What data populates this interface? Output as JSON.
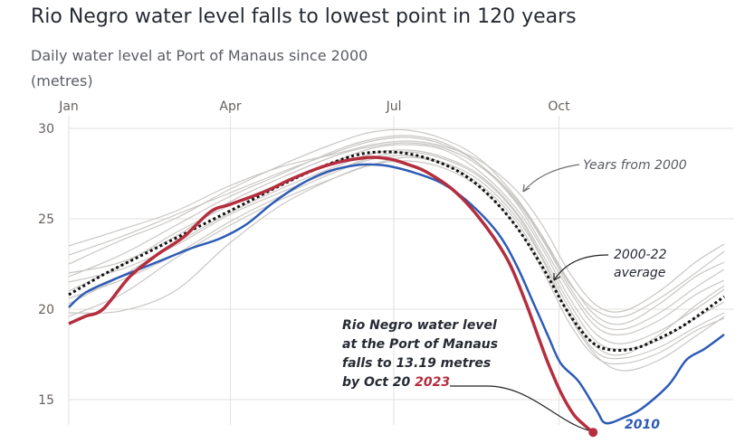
{
  "title": "Rio Negro water level falls to lowest point in 120 years",
  "subtitle": "Daily water level at Port of Manaus since 2000",
  "unit": "(metres)",
  "colors": {
    "y2023": "#b52e3e",
    "y2010": "#2d5bb5",
    "average": "#111111",
    "years": "#c9c7c4",
    "grid": "#e3e1de",
    "text": "#262a33",
    "muted": "#5a5d63"
  },
  "chart_data": {
    "type": "line",
    "title": "Rio Negro water level falls to lowest point in 120 years",
    "subtitle": "Daily water level at Port of Manaus since 2000",
    "ylabel": "(metres)",
    "xlabel": "",
    "x_ticks": [
      "Jan",
      "Apr",
      "Jul",
      "Oct"
    ],
    "x_tick_days": [
      1,
      91,
      182,
      274
    ],
    "y_ticks": [
      15,
      20,
      25,
      30
    ],
    "ylim": [
      13,
      30.5
    ],
    "xlim": [
      1,
      366
    ],
    "grid": true,
    "x_unit": "day of year",
    "series": [
      {
        "name": "2023",
        "style": "solid-thick-red",
        "x": [
          1,
          10,
          20,
          35,
          50,
          65,
          80,
          91,
          110,
          125,
          140,
          150,
          160,
          170,
          180,
          190,
          200,
          215,
          230,
          245,
          255,
          262,
          268,
          275,
          282,
          288,
          293
        ],
        "y": [
          19.2,
          19.6,
          20.0,
          21.8,
          23.0,
          24.0,
          25.4,
          25.8,
          26.5,
          27.2,
          27.8,
          28.1,
          28.3,
          28.4,
          28.3,
          28.0,
          27.6,
          26.6,
          25.0,
          22.8,
          20.5,
          18.6,
          17.0,
          15.4,
          14.2,
          13.6,
          13.19
        ]
      },
      {
        "name": "2010",
        "style": "solid-blue",
        "x": [
          1,
          10,
          25,
          40,
          55,
          70,
          85,
          100,
          115,
          130,
          145,
          160,
          170,
          180,
          195,
          210,
          225,
          240,
          250,
          260,
          268,
          275,
          285,
          295,
          300,
          310,
          320,
          335,
          345,
          355,
          366
        ],
        "y": [
          20.1,
          20.9,
          21.6,
          22.2,
          22.8,
          23.4,
          23.9,
          24.7,
          25.9,
          26.9,
          27.6,
          27.95,
          28.0,
          27.9,
          27.5,
          26.9,
          25.8,
          24.2,
          22.5,
          20.3,
          18.5,
          17.0,
          16.0,
          14.4,
          13.7,
          14.0,
          14.5,
          15.8,
          17.2,
          17.8,
          18.6
        ]
      },
      {
        "name": "2000-22 average",
        "style": "dotted-black",
        "x": [
          1,
          20,
          40,
          60,
          80,
          100,
          120,
          140,
          160,
          175,
          190,
          205,
          220,
          235,
          250,
          265,
          278,
          290,
          300,
          315,
          330,
          345,
          366
        ],
        "y": [
          20.8,
          21.9,
          22.9,
          23.9,
          24.9,
          25.9,
          26.9,
          27.8,
          28.5,
          28.7,
          28.6,
          28.2,
          27.5,
          26.3,
          24.6,
          22.3,
          20.0,
          18.4,
          17.8,
          17.8,
          18.4,
          19.2,
          20.7
        ]
      },
      {
        "name": "Years from 2000",
        "style": "thin-grey",
        "x": [
          1,
          30,
          60,
          90,
          120,
          150,
          170,
          190,
          210,
          230,
          250,
          265,
          280,
          295,
          310,
          330,
          350,
          366
        ],
        "y_offsets_note": "approximate spread of individual years 2000-2022",
        "y_sets": [
          [
            22.5,
            23.8,
            25.0,
            26.6,
            28.0,
            29.2,
            29.8,
            29.9,
            29.4,
            28.3,
            26.2,
            24.0,
            21.5,
            19.6,
            19.2,
            20.3,
            21.8,
            22.6
          ],
          [
            21.8,
            23.0,
            24.6,
            26.2,
            27.5,
            28.8,
            29.4,
            29.6,
            29.2,
            28.0,
            25.9,
            23.5,
            21.0,
            19.0,
            18.6,
            19.4,
            20.8,
            21.6
          ],
          [
            21.0,
            22.4,
            24.2,
            25.7,
            27.0,
            28.2,
            28.9,
            29.1,
            28.8,
            27.6,
            25.6,
            23.3,
            20.6,
            18.6,
            18.1,
            18.8,
            20.0,
            21.1
          ],
          [
            20.3,
            21.8,
            23.6,
            25.3,
            26.7,
            27.9,
            28.6,
            28.8,
            28.4,
            27.4,
            25.4,
            23.0,
            20.3,
            18.2,
            17.8,
            18.3,
            19.5,
            20.4
          ],
          [
            19.6,
            20.8,
            22.8,
            24.6,
            26.1,
            27.3,
            28.0,
            28.4,
            28.0,
            26.9,
            24.9,
            22.4,
            19.7,
            17.6,
            17.3,
            17.9,
            19.0,
            19.8
          ],
          [
            23.5,
            24.4,
            25.4,
            26.8,
            27.9,
            28.6,
            29.1,
            29.3,
            29.0,
            28.2,
            26.6,
            24.6,
            22.0,
            20.2,
            19.9,
            21.0,
            22.6,
            23.6
          ],
          [
            20.6,
            21.6,
            23.0,
            24.8,
            26.3,
            27.6,
            28.3,
            28.5,
            28.1,
            27.1,
            25.1,
            22.7,
            19.6,
            17.4,
            16.6,
            17.2,
            18.5,
            19.6
          ],
          [
            22.0,
            22.6,
            24.0,
            25.9,
            27.3,
            28.5,
            29.0,
            29.2,
            28.9,
            27.9,
            26.0,
            23.8,
            21.2,
            19.3,
            18.9,
            19.8,
            21.2,
            22.2
          ],
          [
            21.5,
            22.2,
            23.5,
            25.2,
            26.5,
            27.7,
            28.4,
            28.7,
            28.3,
            27.3,
            25.3,
            22.8,
            20.0,
            17.9,
            17.5,
            18.6,
            20.2,
            21.3
          ],
          [
            19.8,
            19.9,
            21.0,
            23.6,
            25.8,
            27.3,
            28.0,
            28.2,
            27.8,
            26.7,
            24.6,
            22.1,
            19.2,
            17.3,
            17.0,
            17.6,
            18.8,
            19.5
          ],
          [
            23.0,
            24.0,
            25.2,
            26.4,
            27.6,
            28.7,
            29.3,
            29.5,
            29.1,
            28.0,
            26.1,
            23.9,
            21.4,
            19.9,
            19.6,
            20.6,
            22.0,
            23.2
          ]
        ]
      }
    ],
    "annotations": [
      {
        "text": "Years from 2000"
      },
      {
        "text": "2000-22",
        "line2": "average"
      },
      {
        "lines": [
          "Rio Negro water level",
          "at the Port of Manaus",
          "falls to 13.19 metres",
          "by Oct 20 "
        ],
        "highlight": "2023"
      },
      {
        "text": "2010"
      }
    ]
  }
}
